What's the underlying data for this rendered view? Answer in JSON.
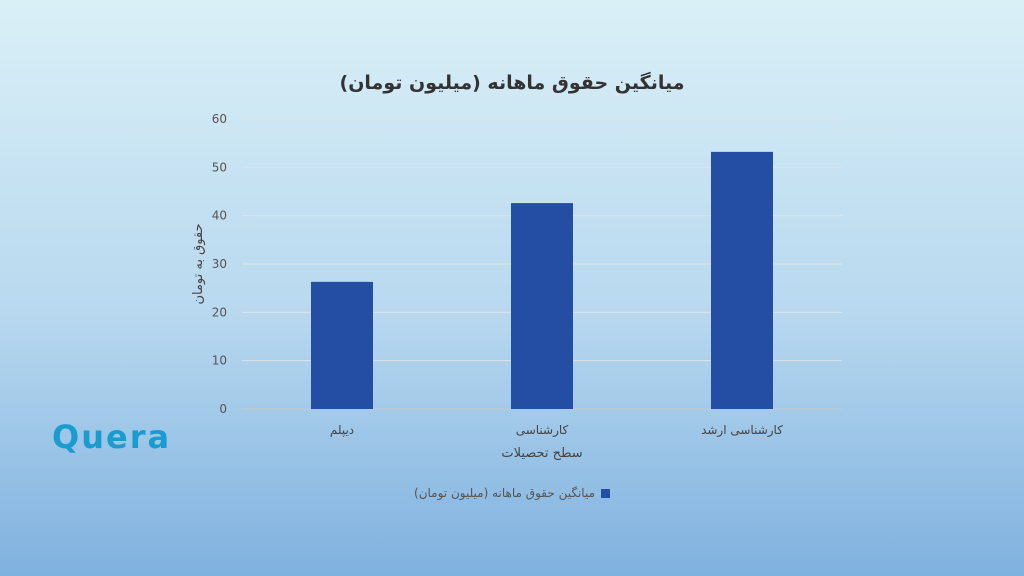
{
  "chart_data": {
    "type": "bar",
    "title": "میانگین حقوق ماهانه (میلیون تومان)",
    "xlabel": "سطح تحصیلات",
    "ylabel": "حقوق به تومان",
    "categories": [
      "دیپلم",
      "کارشناسی",
      "کارشناسی ارشد"
    ],
    "series": [
      {
        "name": "میانگین حقوق ماهانه (میلیون تومان)",
        "values": [
          26.3,
          42.6,
          53.2
        ]
      }
    ],
    "ylim": [
      0,
      60
    ],
    "yticks": [
      "0",
      "10",
      "20",
      "30",
      "40",
      "50",
      "60"
    ],
    "grid": true,
    "legend_position": "bottom",
    "bar_color": "#244ea3"
  },
  "logo": {
    "text": "Quera",
    "color": "#1a9ccf"
  }
}
